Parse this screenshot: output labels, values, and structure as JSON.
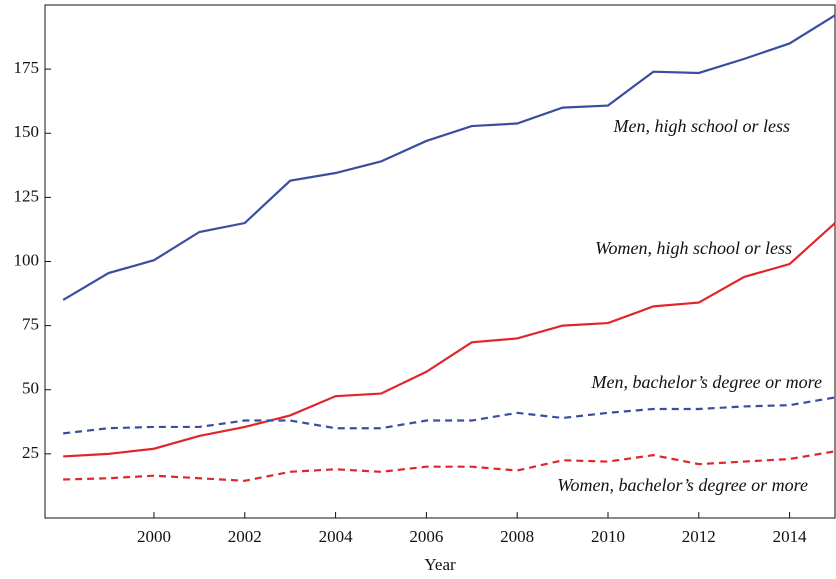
{
  "chart_data": {
    "type": "line",
    "x_label": "Year",
    "x": [
      1998,
      1999,
      2000,
      2001,
      2002,
      2003,
      2004,
      2005,
      2006,
      2007,
      2008,
      2009,
      2010,
      2011,
      2012,
      2013,
      2014,
      2015
    ],
    "series": [
      {
        "name": "Men, high school or less",
        "color": "#3a4ea0",
        "linestyle": "solid",
        "values": [
          85,
          95.5,
          100.5,
          111.5,
          115,
          131.5,
          134.5,
          139,
          147,
          152.8,
          153.8,
          160,
          160.8,
          174,
          173.5,
          179,
          185,
          196
        ]
      },
      {
        "name": "Women, high school or less",
        "color": "#e1262b",
        "linestyle": "solid",
        "values": [
          24,
          25,
          27,
          32,
          35.5,
          40,
          47.5,
          48.5,
          57,
          68.5,
          70,
          75,
          76,
          82.5,
          84,
          94,
          99,
          115
        ]
      },
      {
        "name": "Men, bachelor’s degree or more",
        "color": "#3a4ea0",
        "linestyle": "dashed",
        "values": [
          33,
          35,
          35.5,
          35.5,
          38,
          38,
          35,
          35,
          38,
          38,
          41,
          39,
          41,
          42.5,
          42.5,
          43.5,
          44,
          47
        ]
      },
      {
        "name": "Women, bachelor’s degree or more",
        "color": "#e1262b",
        "linestyle": "dashed",
        "values": [
          15,
          15.5,
          16.5,
          15.5,
          14.5,
          18,
          19,
          18,
          20,
          20,
          18.5,
          22.5,
          22,
          24.5,
          21,
          22,
          23,
          26
        ]
      }
    ],
    "xlim": [
      1997.6,
      2015
    ],
    "ylim": [
      0,
      200
    ],
    "xticks": [
      2000,
      2002,
      2004,
      2006,
      2008,
      2010,
      2012,
      2014
    ],
    "yticks": [
      25,
      50,
      75,
      100,
      125,
      150,
      175
    ],
    "grid": false
  }
}
